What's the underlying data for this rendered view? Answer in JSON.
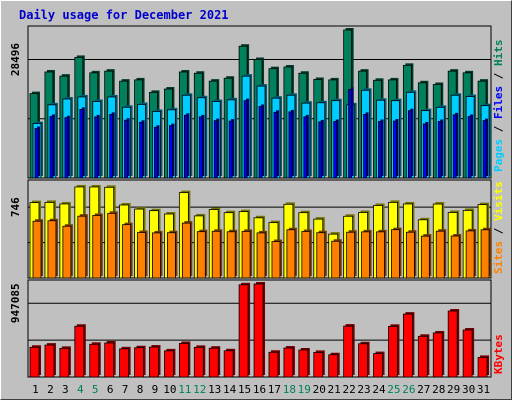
{
  "title": "Daily usage for December 2021",
  "colors": {
    "hits": "#00805c",
    "files": "#0000ff",
    "pages": "#00ccff",
    "visits": "#ffff00",
    "sites": "#ff8000",
    "kbytes": "#ff0000",
    "title": "#0000cc",
    "weekend_label": "#00805c",
    "panel_bg": "#c0c0c0"
  },
  "chart_data": [
    {
      "type": "bar",
      "panel": "hits_files_pages",
      "categories": [
        "1",
        "2",
        "3",
        "4",
        "5",
        "6",
        "7",
        "8",
        "9",
        "10",
        "11",
        "12",
        "13",
        "14",
        "15",
        "16",
        "17",
        "18",
        "19",
        "20",
        "21",
        "22",
        "23",
        "24",
        "25",
        "26",
        "27",
        "28",
        "29",
        "30",
        "31"
      ],
      "weekend_days": [
        "4",
        "5",
        "11",
        "12",
        "18",
        "19",
        "25",
        "26"
      ],
      "y_tick_label": "28496",
      "ymax": 35600,
      "series": [
        {
          "name": "Hits",
          "values": [
            20300,
            25500,
            24500,
            29000,
            25300,
            25700,
            23300,
            23600,
            20600,
            21400,
            25500,
            25200,
            23300,
            24000,
            31700,
            28500,
            26300,
            26700,
            25200,
            23700,
            23600,
            35600,
            25700,
            23500,
            23600,
            27100,
            22900,
            22500,
            25700,
            25300,
            23300
          ]
        },
        {
          "name": "Files",
          "values": [
            11900,
            14800,
            14500,
            16500,
            14700,
            15300,
            13900,
            13400,
            12200,
            12600,
            15100,
            14700,
            13800,
            13700,
            18600,
            17200,
            15800,
            15900,
            14700,
            13500,
            13600,
            21300,
            15300,
            13600,
            13700,
            16200,
            13000,
            13600,
            15200,
            14800,
            13800
          ]
        },
        {
          "name": "Pages",
          "values": [
            13100,
            17600,
            19000,
            19500,
            18400,
            19500,
            17000,
            17700,
            16000,
            16400,
            19900,
            19300,
            18400,
            18800,
            24500,
            22100,
            19200,
            19900,
            18000,
            18100,
            18600,
            17600,
            21100,
            18700,
            18600,
            20600,
            16200,
            17000,
            19900,
            19600,
            17400
          ]
        }
      ]
    },
    {
      "type": "bar",
      "panel": "visits_sites",
      "categories": [
        "1",
        "2",
        "3",
        "4",
        "5",
        "6",
        "7",
        "8",
        "9",
        "10",
        "11",
        "12",
        "13",
        "14",
        "15",
        "16",
        "17",
        "18",
        "19",
        "20",
        "21",
        "22",
        "23",
        "24",
        "25",
        "26",
        "27",
        "28",
        "29",
        "30",
        "31"
      ],
      "y_tick_label": "746",
      "ymax": 990,
      "series": [
        {
          "name": "Visits",
          "values": [
            794,
            796,
            780,
            959,
            959,
            955,
            769,
            726,
            709,
            674,
            899,
            654,
            721,
            688,
            699,
            634,
            583,
            776,
            688,
            620,
            462,
            650,
            690,
            764,
            796,
            780,
            613,
            779,
            690,
            712,
            773
          ]
        },
        {
          "name": "Sites",
          "values": [
            598,
            603,
            545,
            651,
            659,
            681,
            562,
            479,
            475,
            477,
            578,
            488,
            492,
            487,
            491,
            475,
            384,
            508,
            490,
            477,
            387,
            482,
            486,
            486,
            509,
            482,
            441,
            493,
            442,
            496,
            508
          ]
        }
      ]
    },
    {
      "type": "bar",
      "panel": "kbytes",
      "categories": [
        "1",
        "2",
        "3",
        "4",
        "5",
        "6",
        "7",
        "8",
        "9",
        "10",
        "11",
        "12",
        "13",
        "14",
        "15",
        "16",
        "17",
        "18",
        "19",
        "20",
        "21",
        "22",
        "23",
        "24",
        "25",
        "26",
        "27",
        "28",
        "29",
        "30",
        "31"
      ],
      "y_tick_label": "947085",
      "ymax": 1195000,
      "series": [
        {
          "name": "KBytes",
          "values": [
            382000,
            410000,
            368000,
            652000,
            420000,
            437000,
            362000,
            376000,
            385000,
            336000,
            431000,
            381000,
            370000,
            337000,
            1185000,
            1195000,
            318000,
            372000,
            347000,
            316000,
            286000,
            654000,
            427000,
            301000,
            651000,
            808000,
            523000,
            566000,
            848000,
            604000,
            252000
          ]
        }
      ]
    }
  ],
  "legends": {
    "hits_panel": [
      "Pages",
      "/",
      "Files",
      "/",
      "Hits"
    ],
    "visits_panel": [
      "Sites",
      "/",
      "Visits"
    ],
    "kbytes_panel": [
      "KBytes"
    ]
  }
}
